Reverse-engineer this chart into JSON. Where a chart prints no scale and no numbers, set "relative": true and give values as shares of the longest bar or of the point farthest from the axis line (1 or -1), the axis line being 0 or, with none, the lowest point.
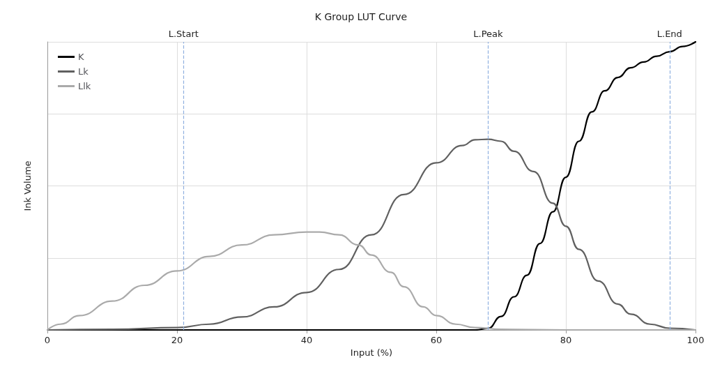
{
  "chart_data": {
    "type": "line",
    "title": "K Group LUT Curve",
    "xlabel": "Input (%)",
    "ylabel": "Ink Volume",
    "relative": true,
    "xlim": [
      0,
      100
    ],
    "xticks": [
      0,
      20,
      40,
      60,
      80,
      100
    ],
    "grid": true,
    "legend": "top left",
    "marker": "none",
    "line_style": "solid",
    "series": [
      {
        "name": "K",
        "color": "#000000",
        "x": [
          0,
          20,
          40,
          60,
          66,
          68,
          70,
          72,
          74,
          76,
          78,
          80,
          82,
          84,
          86,
          88,
          90,
          92,
          94,
          96,
          98,
          100
        ],
        "values": [
          0,
          0,
          0,
          0,
          0,
          0.005,
          0.047,
          0.115,
          0.19,
          0.3,
          0.41,
          0.53,
          0.655,
          0.757,
          0.83,
          0.876,
          0.91,
          0.93,
          0.95,
          0.966,
          0.984,
          1
        ]
      },
      {
        "name": "Lk",
        "color": "#606060",
        "x": [
          0,
          10,
          20,
          25,
          30,
          35,
          40,
          45,
          50,
          55,
          60,
          64,
          66,
          68,
          70,
          72,
          75,
          78,
          80,
          82,
          85,
          88,
          90,
          93,
          96,
          100
        ],
        "values": [
          0,
          0.002,
          0.008,
          0.02,
          0.045,
          0.08,
          0.13,
          0.21,
          0.33,
          0.47,
          0.58,
          0.64,
          0.66,
          0.662,
          0.655,
          0.62,
          0.55,
          0.44,
          0.36,
          0.28,
          0.17,
          0.09,
          0.055,
          0.02,
          0.006,
          0
        ]
      },
      {
        "name": "Llk",
        "color": "#aaaaaa",
        "x": [
          0,
          2,
          5,
          10,
          15,
          20,
          25,
          30,
          35,
          40,
          42,
          45,
          48,
          50,
          53,
          55,
          58,
          60,
          63,
          66,
          70,
          80,
          100
        ],
        "values": [
          0,
          0.02,
          0.05,
          0.1,
          0.155,
          0.205,
          0.255,
          0.295,
          0.33,
          0.34,
          0.34,
          0.33,
          0.295,
          0.26,
          0.2,
          0.15,
          0.08,
          0.05,
          0.02,
          0.008,
          0.002,
          0,
          0
        ]
      }
    ],
    "ref_lines": [
      {
        "axis": "x",
        "value": 21,
        "label": "L.Start",
        "color": "#8fb0e0",
        "line_style": "dashed"
      },
      {
        "axis": "x",
        "value": 68,
        "label": "L.Peak",
        "color": "#8fb0e0",
        "line_style": "dashed"
      },
      {
        "axis": "x",
        "value": 96,
        "label": "L.End",
        "color": "#8fb0e0",
        "line_style": "dashed"
      }
    ]
  }
}
